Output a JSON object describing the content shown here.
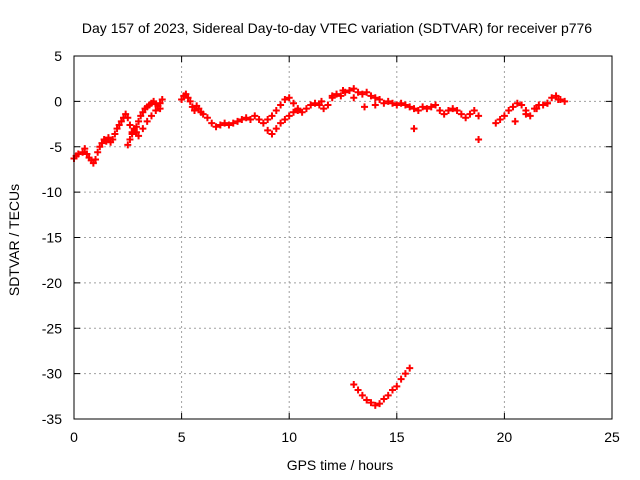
{
  "chart_data": {
    "type": "scatter",
    "title": "Day 157 of 2023, Sidereal Day-to-day VTEC variation (SDTVAR) for receiver p776",
    "xlabel": "GPS time / hours",
    "ylabel": "SDTVAR / TECUs",
    "xlim": [
      0,
      25
    ],
    "ylim": [
      -35,
      5
    ],
    "xticks": [
      0,
      5,
      10,
      15,
      20,
      25
    ],
    "yticks": [
      5,
      0,
      -5,
      -10,
      -15,
      -20,
      -25,
      -30,
      -35
    ],
    "grid": true,
    "marker": "+",
    "colors": {
      "series": "#ff0000",
      "grid": "#a0a0a0",
      "axis": "#000000"
    },
    "series": [
      {
        "name": "SDTVAR",
        "x": [
          0.0,
          0.1,
          0.2,
          0.4,
          0.5,
          0.6,
          0.7,
          0.8,
          0.9,
          1.0,
          1.1,
          1.2,
          1.3,
          1.4,
          1.5,
          1.6,
          1.7,
          1.8,
          1.9,
          2.0,
          2.1,
          2.2,
          2.3,
          2.4,
          2.5,
          2.6,
          2.7,
          2.8,
          2.9,
          3.0,
          3.1,
          3.2,
          3.3,
          3.4,
          3.5,
          3.6,
          3.7,
          3.8,
          3.9,
          4.0,
          4.1,
          5.0,
          5.1,
          5.2,
          5.3,
          5.4,
          5.5,
          5.6,
          5.7,
          5.8,
          5.9,
          6.0,
          6.2,
          6.4,
          6.6,
          6.8,
          7.0,
          7.2,
          7.4,
          7.6,
          7.8,
          8.0,
          8.2,
          8.4,
          8.6,
          8.8,
          9.0,
          9.2,
          9.4,
          9.6,
          9.8,
          10.0,
          10.2,
          10.4,
          10.6,
          10.8,
          11.0,
          11.2,
          11.4,
          11.6,
          11.8,
          12.0,
          12.2,
          12.4,
          12.6,
          12.8,
          13.0,
          13.2,
          13.4,
          13.6,
          13.8,
          14.0,
          14.2,
          14.4,
          14.6,
          14.8,
          15.0,
          15.2,
          15.4,
          15.6,
          15.8,
          16.0,
          16.2,
          16.4,
          16.6,
          16.8,
          17.0,
          17.2,
          17.4,
          17.6,
          17.8,
          18.0,
          18.2,
          18.4,
          18.6,
          18.8,
          19.6,
          19.8,
          20.0,
          20.2,
          20.4,
          20.6,
          20.8,
          21.0,
          21.2,
          21.4,
          21.6,
          21.8,
          22.0,
          22.2,
          22.4,
          22.6,
          22.8,
          13.0,
          13.2,
          13.4,
          13.6,
          13.8,
          14.0,
          14.2,
          14.4,
          14.6,
          14.8,
          15.0,
          15.2,
          15.4,
          15.6,
          2.5,
          2.6,
          2.7,
          2.8,
          2.9,
          3.0,
          3.2,
          3.4,
          3.6,
          3.8,
          4.0,
          9.0,
          9.2,
          9.4,
          9.6,
          9.8,
          10.0,
          10.2,
          10.4,
          11.5,
          12.0,
          12.5,
          13.0,
          13.5,
          14.0,
          15.8,
          18.8,
          20.5,
          21.0,
          21.5,
          22.0,
          22.5
        ],
        "y": [
          -6.3,
          -6.0,
          -5.8,
          -5.6,
          -5.2,
          -5.8,
          -6.2,
          -6.5,
          -6.8,
          -6.4,
          -5.6,
          -5.0,
          -4.6,
          -4.2,
          -4.4,
          -4.0,
          -4.5,
          -4.2,
          -3.6,
          -3.0,
          -2.6,
          -2.2,
          -1.8,
          -1.4,
          -1.8,
          -2.6,
          -3.4,
          -3.2,
          -2.8,
          -2.2,
          -1.6,
          -1.2,
          -0.8,
          -0.6,
          -0.4,
          -0.2,
          0.0,
          -0.3,
          -0.5,
          -0.2,
          0.2,
          0.2,
          0.6,
          0.8,
          0.4,
          0.0,
          -0.6,
          -1.0,
          -0.5,
          -0.8,
          -1.2,
          -1.4,
          -1.8,
          -2.4,
          -2.8,
          -2.6,
          -2.4,
          -2.6,
          -2.4,
          -2.2,
          -2.0,
          -1.8,
          -2.0,
          -1.6,
          -2.0,
          -2.4,
          -2.0,
          -1.6,
          -1.0,
          -0.4,
          0.2,
          0.4,
          -0.2,
          -1.0,
          -1.2,
          -0.8,
          -0.4,
          -0.2,
          -0.4,
          -0.8,
          -0.4,
          0.4,
          0.8,
          0.6,
          1.0,
          1.2,
          1.4,
          1.0,
          0.8,
          1.0,
          0.6,
          0.4,
          0.2,
          -0.2,
          0.0,
          -0.2,
          -0.4,
          -0.2,
          -0.4,
          -0.6,
          -0.8,
          -1.0,
          -0.6,
          -0.8,
          -0.6,
          -0.4,
          -1.0,
          -1.4,
          -1.0,
          -0.8,
          -1.0,
          -1.4,
          -1.8,
          -1.4,
          -1.0,
          -1.6,
          -2.4,
          -2.0,
          -1.6,
          -1.0,
          -0.6,
          -0.2,
          -0.4,
          -1.0,
          -1.6,
          -0.8,
          -0.4,
          -0.4,
          -0.2,
          0.4,
          0.6,
          0.2,
          0.0,
          -31.2,
          -31.8,
          -32.4,
          -32.9,
          -33.2,
          -33.5,
          -33.3,
          -32.8,
          -32.4,
          -31.8,
          -31.4,
          -30.6,
          -30.0,
          -29.4,
          -4.8,
          -4.2,
          -3.6,
          -3.0,
          -3.4,
          -3.8,
          -3.0,
          -2.2,
          -1.6,
          -1.0,
          -0.8,
          -3.2,
          -3.6,
          -3.0,
          -2.4,
          -2.0,
          -1.6,
          -1.2,
          -0.8,
          0.0,
          0.6,
          1.2,
          0.4,
          -0.6,
          -0.4,
          -3.0,
          -4.2,
          -2.2,
          -1.4,
          -0.8,
          -0.2,
          0.2
        ]
      }
    ]
  }
}
